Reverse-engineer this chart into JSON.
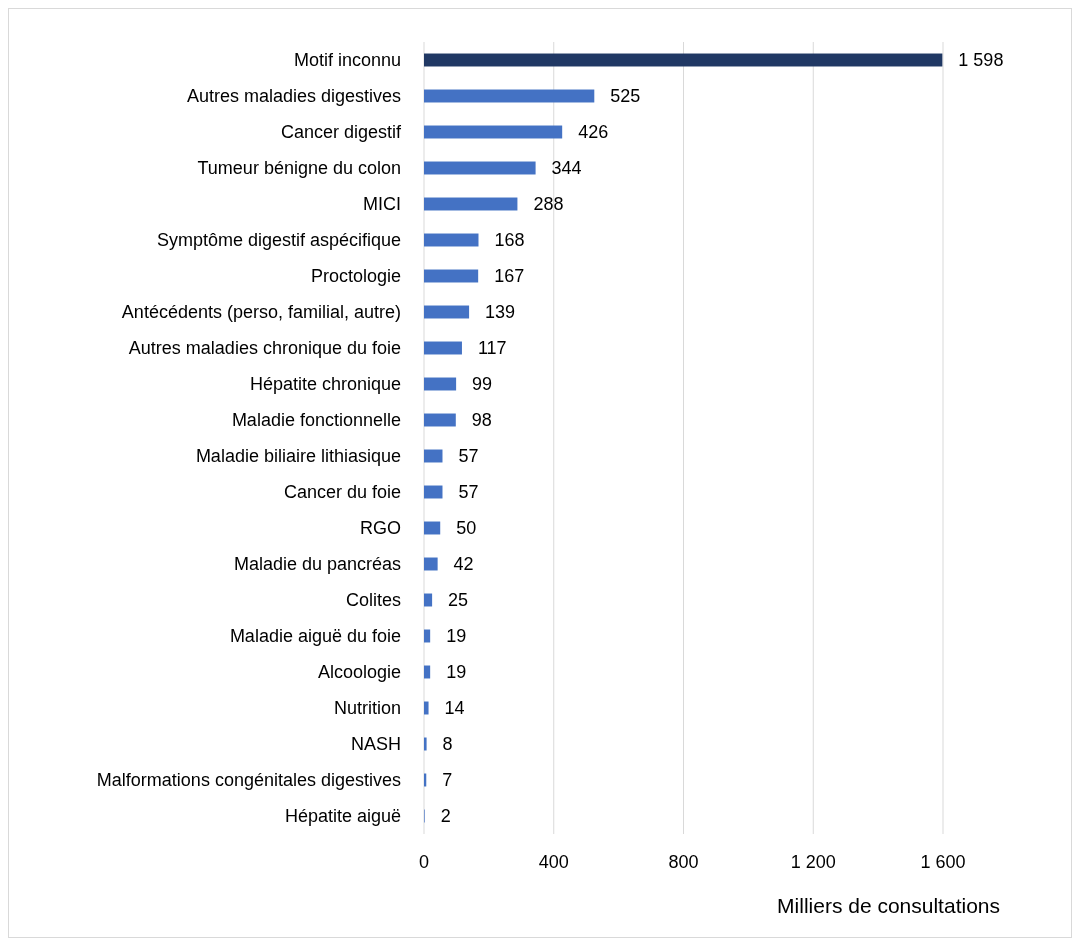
{
  "chart_data": {
    "type": "bar",
    "orientation": "horizontal",
    "xlabel": "Milliers de consultations",
    "categories": [
      "Motif inconnu",
      "Autres maladies digestives",
      "Cancer digestif",
      "Tumeur bénigne du colon",
      "MICI",
      "Symptôme digestif aspécifique",
      "Proctologie",
      "Antécédents (perso, familial, autre)",
      "Autres maladies chronique du foie",
      "Hépatite chronique",
      "Maladie fonctionnelle",
      "Maladie biliaire lithiasique",
      "Cancer du foie",
      "RGO",
      "Maladie du pancréas",
      "Colites",
      "Maladie aiguë du foie",
      "Alcoologie",
      "Nutrition",
      "NASH",
      "Malformations congénitales digestives",
      "Hépatite aiguë"
    ],
    "values": [
      1598,
      525,
      426,
      344,
      288,
      168,
      167,
      139,
      117,
      99,
      98,
      57,
      57,
      50,
      42,
      25,
      19,
      19,
      14,
      8,
      7,
      2
    ],
    "value_labels": [
      "1 598",
      "525",
      "426",
      "344",
      "288",
      "168",
      "167",
      "139",
      "117",
      "99",
      "98",
      "57",
      "57",
      "50",
      "42",
      "25",
      "19",
      "19",
      "14",
      "8",
      "7",
      "2"
    ],
    "colors": [
      "#203864",
      "#4472c4",
      "#4472c4",
      "#4472c4",
      "#4472c4",
      "#4472c4",
      "#4472c4",
      "#4472c4",
      "#4472c4",
      "#4472c4",
      "#4472c4",
      "#4472c4",
      "#4472c4",
      "#4472c4",
      "#4472c4",
      "#4472c4",
      "#4472c4",
      "#4472c4",
      "#4472c4",
      "#4472c4",
      "#4472c4",
      "#4472c4"
    ],
    "xlim": [
      0,
      1600
    ],
    "xticks": [
      0,
      400,
      800,
      {
        "value": 1200,
        "label": "1 200"
      },
      {
        "value": 1600,
        "label": "1 600"
      }
    ],
    "grid": "x"
  }
}
